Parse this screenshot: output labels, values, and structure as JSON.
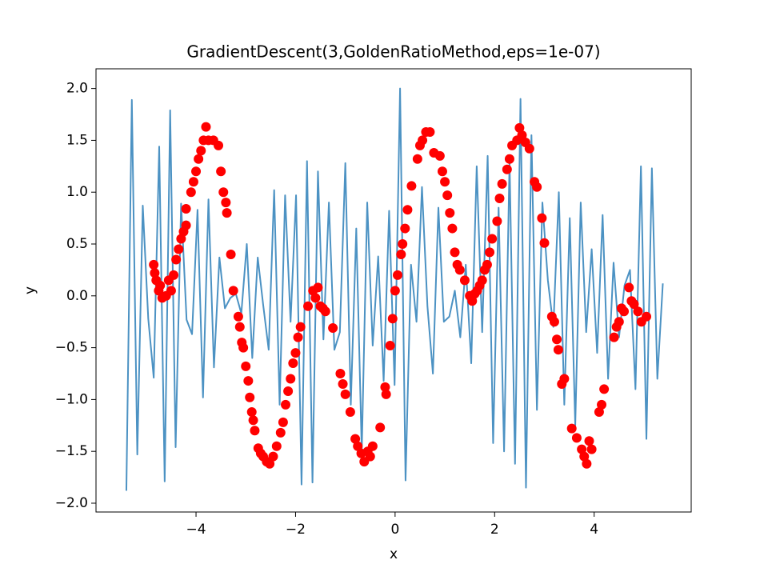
{
  "chart_data": {
    "type": "line",
    "title": "GradientDescent(3,GoldenRatioMethod,eps=1e-07)",
    "x_label": "x",
    "y_label": "y",
    "xlim": [
      -6.01,
      5.95
    ],
    "ylim": [
      -2.085,
      2.19
    ],
    "xticks": [
      {
        "value": -4,
        "label": "−4"
      },
      {
        "value": -2,
        "label": "−2"
      },
      0,
      2,
      4
    ],
    "yticks": [
      {
        "value": -2,
        "label": "−2.0"
      },
      {
        "value": -1.5,
        "label": "−1.5"
      },
      {
        "value": -1,
        "label": "−1.0"
      },
      {
        "value": -0.5,
        "label": "−0.5"
      },
      {
        "value": 0,
        "label": "0.0"
      },
      0.5,
      {
        "value": 1,
        "label": "1.0"
      },
      1.5,
      {
        "value": 2,
        "label": "2.0"
      }
    ],
    "grid": false,
    "series": [
      {
        "type": "line",
        "color": "#1f77b4",
        "opacity": 0.8,
        "x": [
          -5.4,
          -5.29,
          -5.18,
          -5.07,
          -4.96,
          -4.85,
          -4.74,
          -4.63,
          -4.52,
          -4.41,
          -4.3,
          -4.19,
          -4.08,
          -3.97,
          -3.86,
          -3.75,
          -3.64,
          -3.53,
          -3.42,
          -3.31,
          -3.2,
          -3.09,
          -2.98,
          -2.87,
          -2.76,
          -2.65,
          -2.54,
          -2.43,
          -2.32,
          -2.21,
          -2.1,
          -1.99,
          -1.88,
          -1.77,
          -1.66,
          -1.55,
          -1.44,
          -1.33,
          -1.22,
          -1.11,
          -1.0,
          -0.89,
          -0.78,
          -0.67,
          -0.56,
          -0.45,
          -0.34,
          -0.23,
          -0.12,
          -0.01,
          0.1,
          0.21,
          0.32,
          0.43,
          0.54,
          0.65,
          0.76,
          0.87,
          0.98,
          1.09,
          1.2,
          1.31,
          1.42,
          1.53,
          1.64,
          1.75,
          1.86,
          1.97,
          2.08,
          2.19,
          2.3,
          2.41,
          2.52,
          2.63,
          2.74,
          2.85,
          2.96,
          3.07,
          3.18,
          3.29,
          3.4,
          3.51,
          3.62,
          3.73,
          3.84,
          3.95,
          4.06,
          4.17,
          4.28,
          4.39,
          4.5,
          4.61,
          4.72,
          4.83,
          4.94,
          5.05,
          5.16,
          5.27,
          5.38
        ],
        "values": [
          -1.88,
          1.89,
          -1.53,
          0.87,
          -0.22,
          -0.79,
          1.44,
          -1.79,
          1.79,
          -1.46,
          0.89,
          -0.23,
          -0.37,
          0.83,
          -0.98,
          0.93,
          -0.69,
          0.37,
          -0.12,
          -0.02,
          0.02,
          -0.17,
          0.5,
          -0.6,
          0.37,
          -0.09,
          -0.52,
          1.02,
          -1.05,
          0.97,
          -0.25,
          0.97,
          -1.82,
          1.3,
          -1.8,
          1.2,
          -0.42,
          0.9,
          -0.52,
          -0.35,
          1.28,
          -1.05,
          0.65,
          -1.5,
          0.9,
          -0.48,
          0.38,
          -0.82,
          0.82,
          -0.86,
          2.0,
          -1.78,
          0.3,
          -0.25,
          1.05,
          -0.1,
          -0.75,
          0.85,
          -0.25,
          -0.2,
          0.05,
          -0.4,
          0.3,
          -0.65,
          1.25,
          -0.35,
          1.35,
          -1.42,
          0.85,
          -1.5,
          1.3,
          -1.62,
          1.9,
          -1.85,
          1.55,
          -1.1,
          0.9,
          0.15,
          -0.3,
          1.0,
          -1.05,
          0.75,
          -1.25,
          0.9,
          -0.35,
          0.45,
          -0.55,
          0.78,
          -0.8,
          0.32,
          -0.4,
          0.1,
          0.25,
          -0.9,
          1.25,
          -1.38,
          1.23,
          -0.8,
          0.12
        ]
      },
      {
        "type": "scatter",
        "color": "#ff0000",
        "x": [
          -4.85,
          -4.83,
          -4.8,
          -4.75,
          -4.72,
          -4.68,
          -4.6,
          -4.55,
          -4.5,
          -4.45,
          -4.4,
          -4.35,
          -4.3,
          -4.25,
          -4.2,
          -4.2,
          -4.1,
          -4.05,
          -4.0,
          -3.95,
          -3.9,
          -3.85,
          -3.8,
          -3.75,
          -3.65,
          -3.55,
          -3.5,
          -3.45,
          -3.4,
          -3.38,
          -3.3,
          -3.25,
          -3.15,
          -3.12,
          -3.08,
          -3.05,
          -3.0,
          -2.95,
          -2.92,
          -2.88,
          -2.85,
          -2.82,
          -2.75,
          -2.7,
          -2.65,
          -2.58,
          -2.52,
          -2.45,
          -2.38,
          -2.3,
          -2.25,
          -2.2,
          -2.15,
          -2.1,
          -2.05,
          -2.0,
          -1.95,
          -1.9,
          -1.75,
          -1.65,
          -1.6,
          -1.55,
          -1.5,
          -1.45,
          -1.4,
          -1.25,
          -1.1,
          -1.05,
          -1.0,
          -0.9,
          -0.8,
          -0.75,
          -0.68,
          -0.62,
          -0.55,
          -0.5,
          -0.45,
          -0.3,
          -0.2,
          -0.18,
          -0.1,
          -0.05,
          0.0,
          0.05,
          0.12,
          0.15,
          0.2,
          0.25,
          0.33,
          0.45,
          0.5,
          0.55,
          0.62,
          0.7,
          0.78,
          0.9,
          0.95,
          1.0,
          1.05,
          1.1,
          1.15,
          1.2,
          1.25,
          1.3,
          1.4,
          1.5,
          1.55,
          1.6,
          1.65,
          1.7,
          1.75,
          1.8,
          1.85,
          1.9,
          1.95,
          2.05,
          2.1,
          2.15,
          2.25,
          2.3,
          2.35,
          2.45,
          2.5,
          2.55,
          2.62,
          2.7,
          2.8,
          2.85,
          2.95,
          3.0,
          3.15,
          3.2,
          3.25,
          3.28,
          3.35,
          3.4,
          3.55,
          3.65,
          3.75,
          3.8,
          3.85,
          3.9,
          3.95,
          4.1,
          4.15,
          4.2,
          4.4,
          4.45,
          4.5,
          4.55,
          4.6,
          4.7,
          4.75,
          4.8,
          4.88,
          4.95,
          5.05
        ],
        "values": [
          0.3,
          0.22,
          0.15,
          0.05,
          0.1,
          -0.02,
          0.0,
          0.15,
          0.05,
          0.2,
          0.35,
          0.45,
          0.55,
          0.62,
          0.68,
          0.84,
          1.0,
          1.1,
          1.2,
          1.32,
          1.4,
          1.5,
          1.63,
          1.5,
          1.5,
          1.45,
          1.2,
          1.0,
          0.9,
          0.8,
          0.4,
          0.05,
          -0.2,
          -0.3,
          -0.45,
          -0.5,
          -0.68,
          -0.82,
          -0.98,
          -1.12,
          -1.2,
          -1.3,
          -1.47,
          -1.52,
          -1.55,
          -1.6,
          -1.62,
          -1.55,
          -1.45,
          -1.32,
          -1.22,
          -1.05,
          -0.92,
          -0.8,
          -0.65,
          -0.55,
          -0.4,
          -0.3,
          -0.1,
          0.05,
          -0.02,
          0.08,
          -0.1,
          -0.12,
          -0.15,
          -0.31,
          -0.75,
          -0.85,
          -0.95,
          -1.12,
          -1.38,
          -1.45,
          -1.52,
          -1.6,
          -1.5,
          -1.55,
          -1.45,
          -1.27,
          -0.88,
          -0.95,
          -0.48,
          -0.22,
          0.05,
          0.2,
          0.4,
          0.5,
          0.65,
          0.83,
          1.06,
          1.32,
          1.45,
          1.5,
          1.58,
          1.58,
          1.38,
          1.35,
          1.2,
          1.1,
          0.97,
          0.8,
          0.65,
          0.42,
          0.3,
          0.25,
          0.15,
          0.0,
          -0.05,
          0.02,
          0.05,
          0.1,
          0.15,
          0.25,
          0.3,
          0.42,
          0.55,
          0.72,
          0.94,
          1.08,
          1.22,
          1.32,
          1.45,
          1.5,
          1.62,
          1.55,
          1.48,
          1.42,
          1.1,
          1.05,
          0.75,
          0.51,
          -0.2,
          -0.25,
          -0.42,
          -0.52,
          -0.85,
          -0.8,
          -1.28,
          -1.37,
          -1.48,
          -1.55,
          -1.62,
          -1.4,
          -1.48,
          -1.12,
          -1.05,
          -0.9,
          -0.4,
          -0.3,
          -0.25,
          -0.12,
          -0.15,
          0.08,
          -0.05,
          -0.08,
          -0.15,
          -0.25,
          -0.2
        ]
      }
    ]
  }
}
